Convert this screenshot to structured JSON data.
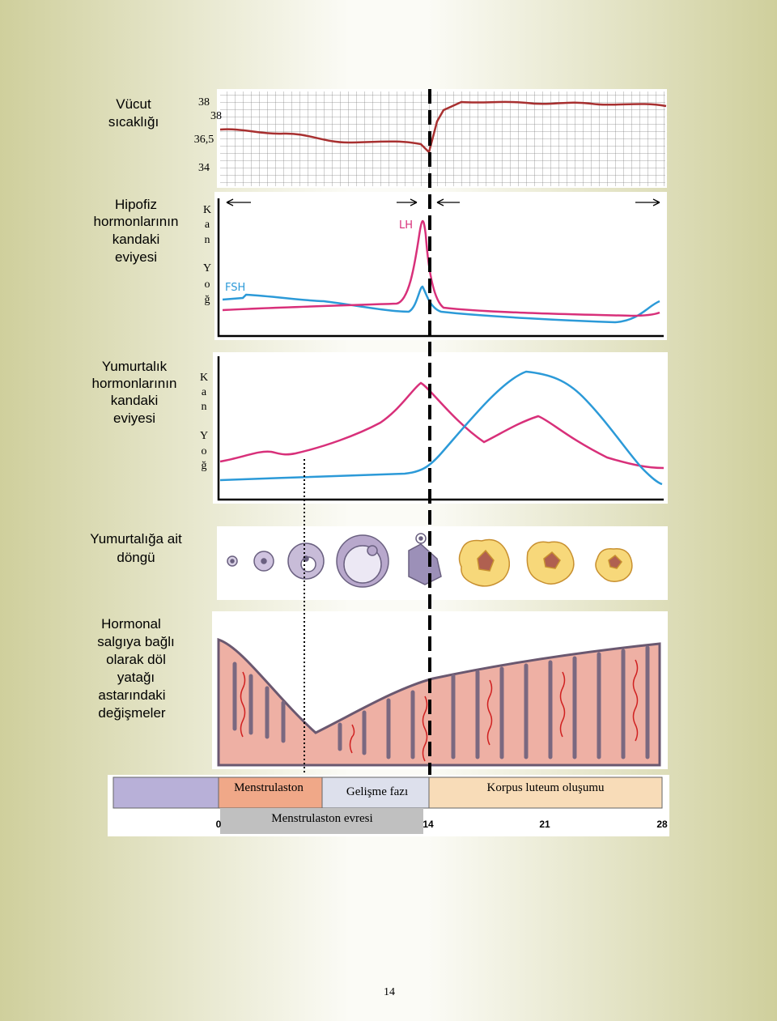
{
  "rows": [
    {
      "lines": [
        "Vücut",
        "sıcaklığı"
      ]
    },
    {
      "lines": [
        "Hipofiz",
        "hormonlarının",
        "kandaki",
        "eviyesi"
      ]
    },
    {
      "lines": [
        "Yumurtalık",
        "hormonlarının",
        "kandaki",
        "eviyesi"
      ]
    },
    {
      "lines": [
        "Yumurtalığa ait",
        "döngü"
      ]
    },
    {
      "lines": [
        "Hormonal",
        "salgıya bağlı",
        "olarak döl",
        "yatağı",
        "astarındaki",
        "değişmeler"
      ]
    }
  ],
  "temperature_axis": [
    "38",
    "38",
    "36,5",
    "34"
  ],
  "hormone_axis": [
    "K",
    "a",
    "n",
    "Y",
    "o",
    "ğ"
  ],
  "curve_labels": {
    "lh": "LH",
    "fsh": "FSH"
  },
  "phases": [
    "Menstrulaston",
    "Gelişme fazı",
    "Korpus luteum oluşumu"
  ],
  "phase_bottom": "Menstrulaston evresi",
  "day_ticks": [
    "0",
    "14",
    "21",
    "28"
  ],
  "page_number": "14"
}
